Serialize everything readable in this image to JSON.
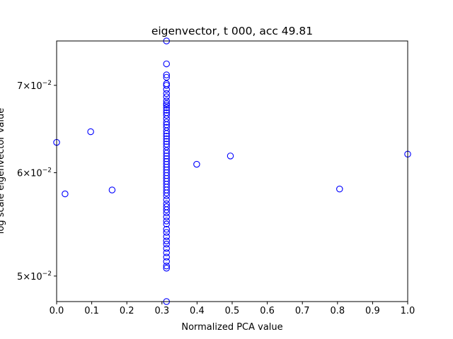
{
  "chart_data": {
    "type": "scatter",
    "title": "eigenvector, t 000, acc 49.81",
    "xlabel": "Normalized PCA value",
    "ylabel": "log scale eigenvector value",
    "xlim": [
      0.0,
      1.0
    ],
    "ylim": [
      0.0478,
      0.0757
    ],
    "yscale": "log",
    "grid": false,
    "x_ticks": [
      "0.0",
      "0.1",
      "0.2",
      "0.3",
      "0.4",
      "0.5",
      "0.6",
      "0.7",
      "0.8",
      "0.9",
      "1.0"
    ],
    "y_ticks": [
      {
        "value": 0.05,
        "mantissa": "5",
        "base": "10",
        "exp": "−2"
      },
      {
        "value": 0.06,
        "mantissa": "6",
        "base": "10",
        "exp": "−2"
      },
      {
        "value": 0.07,
        "mantissa": "7",
        "base": "10",
        "exp": "−2"
      }
    ],
    "series": [
      {
        "marker": "open-circle",
        "color": "#0000ff",
        "points": [
          [
            0.0,
            0.0633
          ],
          [
            0.024,
            0.0578
          ],
          [
            0.097,
            0.0645
          ],
          [
            0.158,
            0.0582
          ],
          [
            0.399,
            0.0609
          ],
          [
            0.495,
            0.0618
          ],
          [
            0.806,
            0.0583
          ],
          [
            1.0,
            0.062
          ],
          [
            0.313,
            0.0757
          ],
          [
            0.313,
            0.0727
          ],
          [
            0.313,
            0.0713
          ],
          [
            0.313,
            0.071
          ],
          [
            0.313,
            0.0702
          ],
          [
            0.313,
            0.07
          ],
          [
            0.313,
            0.0695
          ],
          [
            0.313,
            0.069
          ],
          [
            0.313,
            0.0686
          ],
          [
            0.313,
            0.0681
          ],
          [
            0.313,
            0.0678
          ],
          [
            0.313,
            0.0676
          ],
          [
            0.313,
            0.0673
          ],
          [
            0.313,
            0.067
          ],
          [
            0.313,
            0.0667
          ],
          [
            0.313,
            0.0664
          ],
          [
            0.313,
            0.066
          ],
          [
            0.313,
            0.0656
          ],
          [
            0.313,
            0.0653
          ],
          [
            0.313,
            0.065
          ],
          [
            0.313,
            0.0646
          ],
          [
            0.313,
            0.0643
          ],
          [
            0.313,
            0.064
          ],
          [
            0.313,
            0.0637
          ],
          [
            0.313,
            0.0634
          ],
          [
            0.313,
            0.0631
          ],
          [
            0.313,
            0.0628
          ],
          [
            0.313,
            0.0624
          ],
          [
            0.313,
            0.0621
          ],
          [
            0.313,
            0.0618
          ],
          [
            0.313,
            0.0615
          ],
          [
            0.313,
            0.0612
          ],
          [
            0.313,
            0.0609
          ],
          [
            0.313,
            0.0606
          ],
          [
            0.313,
            0.0603
          ],
          [
            0.313,
            0.06
          ],
          [
            0.313,
            0.0597
          ],
          [
            0.313,
            0.0594
          ],
          [
            0.313,
            0.0591
          ],
          [
            0.313,
            0.0588
          ],
          [
            0.313,
            0.0585
          ],
          [
            0.313,
            0.0582
          ],
          [
            0.313,
            0.0579
          ],
          [
            0.313,
            0.0576
          ],
          [
            0.313,
            0.0572
          ],
          [
            0.313,
            0.0568
          ],
          [
            0.313,
            0.0565
          ],
          [
            0.313,
            0.0562
          ],
          [
            0.313,
            0.0559
          ],
          [
            0.313,
            0.0555
          ],
          [
            0.313,
            0.0551
          ],
          [
            0.313,
            0.0548
          ],
          [
            0.313,
            0.0543
          ],
          [
            0.313,
            0.054
          ],
          [
            0.313,
            0.0536
          ],
          [
            0.313,
            0.0532
          ],
          [
            0.313,
            0.0529
          ],
          [
            0.313,
            0.0525
          ],
          [
            0.313,
            0.0521
          ],
          [
            0.313,
            0.0517
          ],
          [
            0.313,
            0.0513
          ],
          [
            0.313,
            0.0509
          ],
          [
            0.313,
            0.0507
          ],
          [
            0.313,
            0.0478
          ]
        ]
      }
    ]
  }
}
